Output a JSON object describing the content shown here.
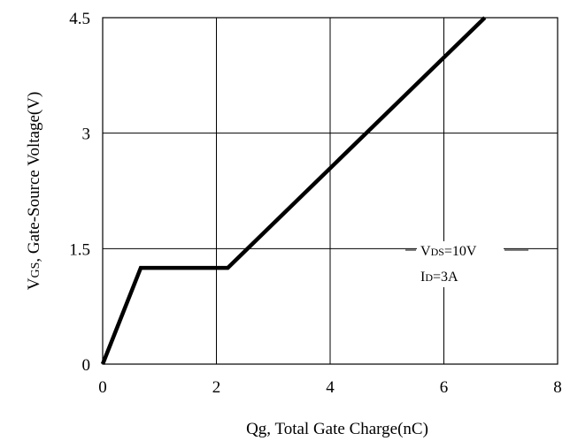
{
  "chart_data": {
    "type": "line",
    "xlabel": "Qg, Total Gate Charge(nC)",
    "ylabel": "VGS, Gate-Source Voltage(V)",
    "xlim": [
      0,
      8
    ],
    "ylim": [
      0,
      4.5
    ],
    "xticks": [
      0,
      2,
      4,
      6,
      8
    ],
    "xtick_labels": [
      "0",
      "2",
      "4",
      "6",
      "8"
    ],
    "yticks": [
      0,
      1.5,
      3,
      4.5
    ],
    "ytick_labels": [
      "0",
      "1.5",
      "3",
      "4.5"
    ],
    "grid": true,
    "series": [
      {
        "x": [
          0,
          0.67,
          2.2,
          6.72
        ],
        "y": [
          0,
          1.25,
          1.25,
          4.5
        ]
      }
    ],
    "annotations": [
      "VDS=10V",
      "ID=3A"
    ],
    "line_color": "#000000"
  }
}
